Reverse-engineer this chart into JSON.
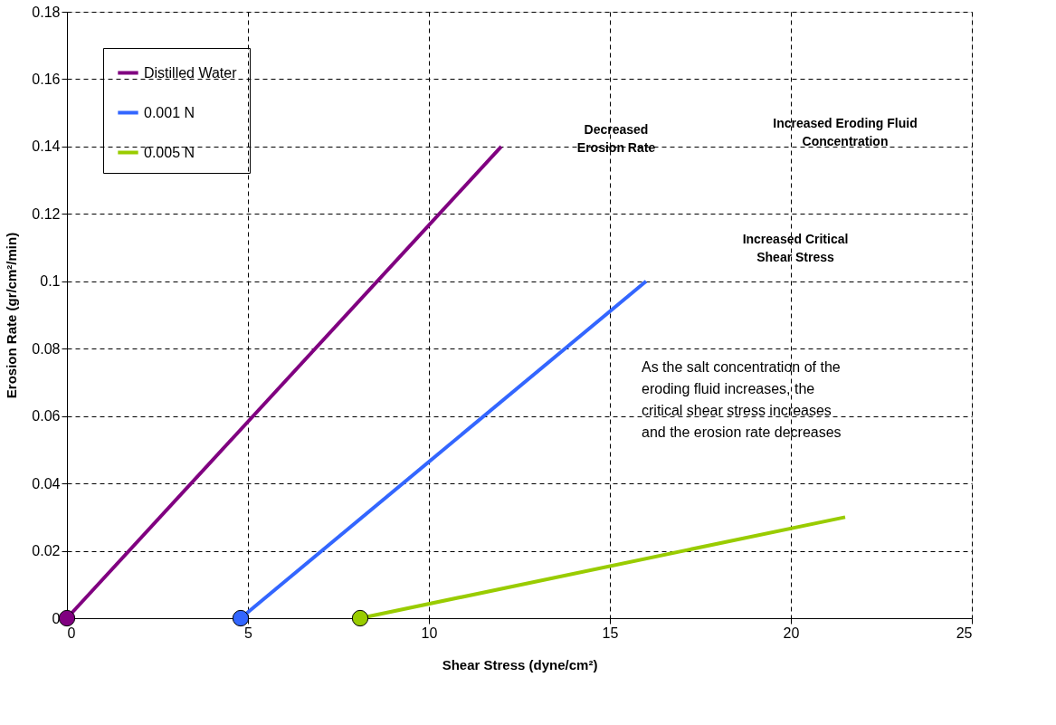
{
  "chart_data": {
    "type": "line",
    "xlabel": "Shear Stress (dyne/cm²)",
    "ylabel": "Erosion Rate (gr/cm²/min)",
    "xlim": [
      0,
      25
    ],
    "ylim": [
      0,
      0.18
    ],
    "xticks": [
      0,
      5,
      10,
      15,
      20,
      25
    ],
    "yticks": [
      0,
      0.02,
      0.04,
      0.06,
      0.08,
      0.1,
      0.12,
      0.14,
      0.16,
      0.18
    ],
    "grid": true,
    "legend": "top left",
    "line_style": "solid",
    "series": [
      {
        "name": "Distilled Water",
        "color": "#800080",
        "x": [
          0,
          12
        ],
        "values": [
          0,
          0.14
        ]
      },
      {
        "name": "0.001 N",
        "color": "#3366ff",
        "x": [
          4.8,
          16
        ],
        "values": [
          0,
          0.1
        ]
      },
      {
        "name": "0.005 N",
        "color": "#99cc00",
        "x": [
          8.1,
          21.5
        ],
        "values": [
          0,
          0.03
        ]
      },
      {
        "type": "scatter",
        "marker": "circle",
        "colors": [
          "#800080",
          "#3366ff",
          "#99cc00"
        ],
        "x": [
          0,
          4.8,
          8.1
        ],
        "values": [
          0,
          0,
          0
        ]
      }
    ],
    "annotations": [
      "Decreased Erosion Rate",
      "Increased Eroding Fluid Concentration",
      "Increased Critical Shear Stress",
      "As the salt concentration of the eroding fluid increases, the critical shear stress increases and the erosion rate decreases"
    ]
  }
}
